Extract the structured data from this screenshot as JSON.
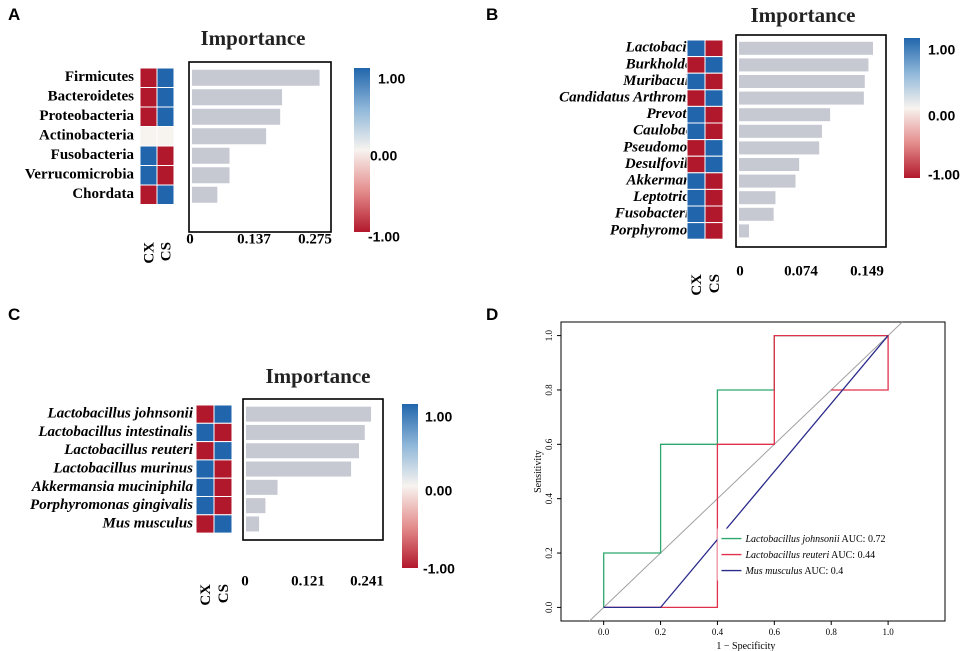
{
  "colors": {
    "pos": "#2166ac",
    "neg": "#b2182b",
    "neutral": "#f7f3ef",
    "bar": "#c6c8d2",
    "gridline": "#a0a0a0",
    "roc_green": "#2ca86e",
    "roc_red": "#e0304b",
    "roc_navy": "#2b2b8c"
  },
  "colorbar_ticks": [
    "1.00",
    "0.00",
    "-1.00"
  ],
  "chart_data": [
    {
      "panel": "A",
      "type": "bar",
      "title": "Importance",
      "italic": false,
      "categories": [
        "Firmicutes",
        "Bacteroidetes",
        "Proteobacteria",
        "Actinobacteria",
        "Fusobacteria",
        "Verrucomicrobia",
        "Chordata"
      ],
      "values": [
        0.272,
        0.192,
        0.188,
        0.158,
        0.08,
        0.08,
        0.054
      ],
      "heat_columns": [
        "CX",
        "CS"
      ],
      "heat": [
        [
          -1,
          1
        ],
        [
          -1,
          1
        ],
        [
          -1,
          1
        ],
        [
          0,
          0
        ],
        [
          1,
          -1
        ],
        [
          1,
          -1
        ],
        [
          -1,
          1
        ]
      ],
      "xticks": [
        "0",
        "0.137",
        "0.275"
      ],
      "xlim": [
        0,
        0.29
      ]
    },
    {
      "panel": "B",
      "type": "bar",
      "title": "Importance",
      "italic": true,
      "categories": [
        "Lactobacillus",
        "Burkholderia",
        "Muribaculum",
        "Candidatus Arthromitus",
        "Prevotella",
        "Caulobacter",
        "Pseudomonas",
        "Desulfovibrio",
        "Akkermansia",
        "Leptotrichia",
        "Fusobacterium",
        "Porphyromonas"
      ],
      "values": [
        0.147,
        0.142,
        0.138,
        0.137,
        0.1,
        0.091,
        0.088,
        0.066,
        0.062,
        0.04,
        0.038,
        0.011
      ],
      "heat_columns": [
        "CX",
        "CS"
      ],
      "heat": [
        [
          1,
          -1
        ],
        [
          -1,
          1
        ],
        [
          1,
          -1
        ],
        [
          -1,
          1
        ],
        [
          1,
          -1
        ],
        [
          1,
          -1
        ],
        [
          -1,
          1
        ],
        [
          -1,
          1
        ],
        [
          1,
          -1
        ],
        [
          1,
          -1
        ],
        [
          1,
          -1
        ],
        [
          1,
          -1
        ]
      ],
      "xticks": [
        "0",
        "0.074",
        "0.149"
      ],
      "xlim": [
        0,
        0.158
      ]
    },
    {
      "panel": "C",
      "type": "bar",
      "title": "Importance",
      "italic": true,
      "categories": [
        "Lactobacillus johnsonii",
        "Lactobacillus intestinalis",
        "Lactobacillus reuteri",
        "Lactobacillus murinus",
        "Akkermansia muciniphila",
        "Porphyromonas gingivalis",
        "Mus musculus"
      ],
      "values": [
        0.238,
        0.226,
        0.215,
        0.2,
        0.06,
        0.037,
        0.025
      ],
      "heat_columns": [
        "CX",
        "CS"
      ],
      "heat": [
        [
          -1,
          1
        ],
        [
          1,
          -1
        ],
        [
          -1,
          1
        ],
        [
          1,
          -1
        ],
        [
          1,
          -1
        ],
        [
          1,
          -1
        ],
        [
          -1,
          1
        ]
      ],
      "xticks": [
        "0",
        "0.121",
        "0.241"
      ],
      "xlim": [
        0,
        0.255
      ]
    },
    {
      "panel": "D",
      "type": "line",
      "subtype": "roc",
      "xlabel": "1 − Specificity",
      "ylabel": "Sensitivity",
      "xticks": [
        "0.0",
        "0.2",
        "0.4",
        "0.6",
        "0.8",
        "1.0"
      ],
      "yticks": [
        "0.0",
        "0.2",
        "0.4",
        "0.6",
        "0.8",
        "1.0"
      ],
      "xlim": [
        -0.15,
        1.2
      ],
      "ylim": [
        -0.05,
        1.05
      ],
      "series": [
        {
          "name": "Lactobacillus johnsonii",
          "auc": "AUC: 0.72",
          "color": "#2ca86e",
          "x": [
            0,
            0,
            0.2,
            0.2,
            0.4,
            0.4,
            0.6,
            0.6,
            1
          ],
          "y": [
            0,
            0.2,
            0.2,
            0.6,
            0.6,
            0.8,
            0.8,
            1,
            1
          ]
        },
        {
          "name": "Lactobacillus reuteri",
          "auc": "AUC: 0.44",
          "color": "#e0304b",
          "x": [
            0,
            0.4,
            0.4,
            0.6,
            0.6,
            1,
            1,
            0.8,
            0.8
          ],
          "y": [
            0,
            0,
            0.6,
            0.6,
            1,
            1,
            0.8,
            0.8,
            0.8
          ]
        },
        {
          "name": "Mus musculus",
          "auc": "AUC: 0.4",
          "color": "#2b2b8c",
          "x": [
            0,
            0.2,
            1
          ],
          "y": [
            0,
            0,
            1
          ]
        }
      ],
      "diagonal": true
    }
  ]
}
